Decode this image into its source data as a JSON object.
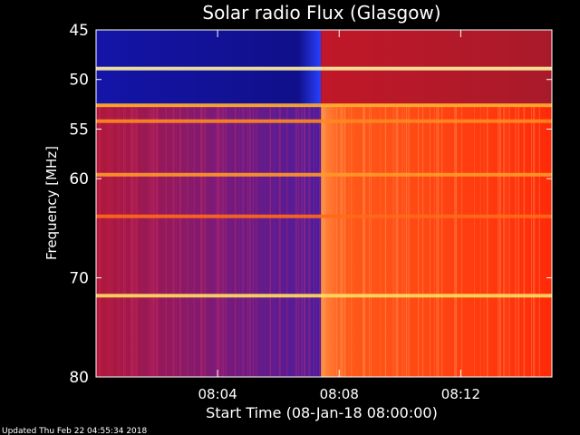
{
  "chart_data": {
    "type": "heatmap",
    "title": "Solar radio Flux (Glasgow)",
    "xlabel": "Start Time (08-Jan-18 08:00:00)",
    "ylabel": "Frequency [MHz]",
    "x_unit": "minutes after 08:00:00",
    "xlim": [
      0,
      15
    ],
    "ylim": [
      45,
      80
    ],
    "y_inverted": true,
    "x_ticks": [
      {
        "value": 4,
        "label": "08:04"
      },
      {
        "value": 8,
        "label": "08:08"
      },
      {
        "value": 12,
        "label": "08:12"
      }
    ],
    "y_ticks": [
      {
        "value": 45,
        "label": "45"
      },
      {
        "value": 50,
        "label": "50"
      },
      {
        "value": 55,
        "label": "55"
      },
      {
        "value": 60,
        "label": "60"
      },
      {
        "value": 70,
        "label": "70"
      },
      {
        "value": 80,
        "label": "80"
      }
    ],
    "regions": [
      {
        "x": [
          0,
          7.4
        ],
        "y": [
          45,
          52.5
        ],
        "level": "low",
        "color": "#1a1ab4"
      },
      {
        "x": [
          0,
          7.4
        ],
        "y": [
          52.5,
          80
        ],
        "level": "medium",
        "color": "#a8143a"
      },
      {
        "x": [
          7.4,
          15
        ],
        "y": [
          45,
          52.5
        ],
        "level": "medium",
        "color": "#b81820"
      },
      {
        "x": [
          7.4,
          15
        ],
        "y": [
          52.5,
          80
        ],
        "level": "high",
        "color": "#ff3a0c"
      }
    ],
    "horizontal_bands": [
      {
        "freq": 48.9,
        "color": "#fff2a0"
      },
      {
        "freq": 52.6,
        "color": "#ffb030"
      },
      {
        "freq": 54.2,
        "color": "#ff8a20"
      },
      {
        "freq": 59.6,
        "color": "#ff9a28"
      },
      {
        "freq": 63.8,
        "color": "#ff6a18"
      },
      {
        "freq": 71.8,
        "color": "#ffe060"
      }
    ]
  },
  "footer": {
    "updated": "Updated Thu Feb 22 04:55:34 2018"
  },
  "colors": {
    "background": "#000000",
    "axis": "#ffffff"
  }
}
